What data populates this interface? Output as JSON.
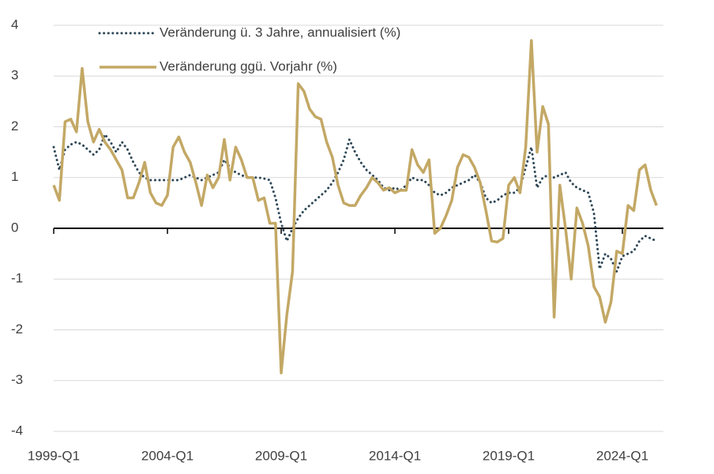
{
  "chart_data": {
    "type": "line",
    "categories": [
      "1999-Q1",
      null,
      null,
      null,
      null,
      null,
      null,
      null,
      null,
      null,
      null,
      null,
      null,
      null,
      null,
      null,
      null,
      null,
      null,
      null,
      "2004-Q1",
      null,
      null,
      null,
      null,
      null,
      null,
      null,
      null,
      null,
      null,
      null,
      null,
      null,
      null,
      null,
      null,
      null,
      null,
      null,
      "2009-Q1",
      null,
      null,
      null,
      null,
      null,
      null,
      null,
      null,
      null,
      null,
      null,
      null,
      null,
      null,
      null,
      null,
      null,
      null,
      null,
      "2014-Q1",
      null,
      null,
      null,
      null,
      null,
      null,
      null,
      null,
      null,
      null,
      null,
      null,
      null,
      null,
      null,
      null,
      null,
      null,
      null,
      "2019-Q1",
      null,
      null,
      null,
      null,
      null,
      null,
      null,
      null,
      null,
      null,
      null,
      null,
      null,
      null,
      null,
      null,
      null,
      null,
      null,
      "2024-Q1",
      null,
      null,
      null,
      null,
      null,
      null
    ],
    "series": [
      {
        "name": "Veränderung ü. 3 Jahre, annualisiert (%)",
        "color": "#2f4858",
        "style": "dotted",
        "values": [
          1.6,
          1.15,
          1.55,
          1.65,
          1.7,
          1.65,
          1.55,
          1.45,
          1.55,
          1.85,
          1.7,
          1.5,
          1.7,
          1.55,
          1.3,
          1.1,
          1.0,
          0.95,
          0.95,
          0.95,
          0.95,
          0.95,
          0.95,
          1.0,
          1.05,
          1.0,
          0.95,
          1.0,
          1.05,
          1.1,
          1.35,
          1.2,
          1.1,
          1.05,
          1.0,
          1.0,
          1.0,
          0.98,
          0.95,
          0.6,
          0.1,
          -0.25,
          0.0,
          0.2,
          0.35,
          0.45,
          0.55,
          0.65,
          0.75,
          0.9,
          1.1,
          1.35,
          1.75,
          1.5,
          1.3,
          1.15,
          1.05,
          0.95,
          0.8,
          0.75,
          0.8,
          0.75,
          0.85,
          1.0,
          0.95,
          0.95,
          0.85,
          0.7,
          0.65,
          0.7,
          0.8,
          0.85,
          0.9,
          0.95,
          1.05,
          0.9,
          0.6,
          0.5,
          0.55,
          0.65,
          0.7,
          0.7,
          0.8,
          1.2,
          1.6,
          0.8,
          1.0,
          1.05,
          1.0,
          1.05,
          1.1,
          0.9,
          0.8,
          0.75,
          0.7,
          0.3,
          -0.8,
          -0.5,
          -0.6,
          -0.85,
          -0.55,
          -0.5,
          -0.45,
          -0.25,
          -0.15,
          -0.2,
          -0.25
        ]
      },
      {
        "name": "Veränderung ggü. Vorjahr (%)",
        "color": "#c3a865",
        "style": "solid",
        "values": [
          0.85,
          0.55,
          2.1,
          2.15,
          1.9,
          3.15,
          2.1,
          1.7,
          1.95,
          1.7,
          1.55,
          1.35,
          1.15,
          0.6,
          0.6,
          0.9,
          1.3,
          0.7,
          0.5,
          0.45,
          0.65,
          1.6,
          1.8,
          1.5,
          1.3,
          0.9,
          0.45,
          1.05,
          0.8,
          1.0,
          1.75,
          0.95,
          1.6,
          1.35,
          1.0,
          1.0,
          0.55,
          0.6,
          0.1,
          0.1,
          -2.85,
          -1.7,
          -0.85,
          2.85,
          2.7,
          2.35,
          2.2,
          2.15,
          1.7,
          1.4,
          0.85,
          0.5,
          0.45,
          0.45,
          0.65,
          0.8,
          1.0,
          0.9,
          0.75,
          0.8,
          0.7,
          0.75,
          0.75,
          1.55,
          1.25,
          1.1,
          1.35,
          -0.1,
          0.0,
          0.25,
          0.55,
          1.2,
          1.45,
          1.4,
          1.2,
          0.9,
          0.35,
          -0.25,
          -0.27,
          -0.2,
          0.85,
          1.0,
          0.7,
          1.6,
          3.7,
          1.5,
          2.4,
          2.05,
          -1.75,
          0.85,
          0.0,
          -1.0,
          0.4,
          0.1,
          -0.35,
          -1.15,
          -1.35,
          -1.85,
          -1.45,
          -0.45,
          -0.5,
          0.45,
          0.35,
          1.15,
          1.25,
          0.75,
          0.45
        ]
      }
    ],
    "ylim": [
      -4,
      4
    ],
    "yticks": [
      -4,
      -3,
      -2,
      -1,
      0,
      1,
      2,
      3,
      4
    ],
    "grid": true
  }
}
